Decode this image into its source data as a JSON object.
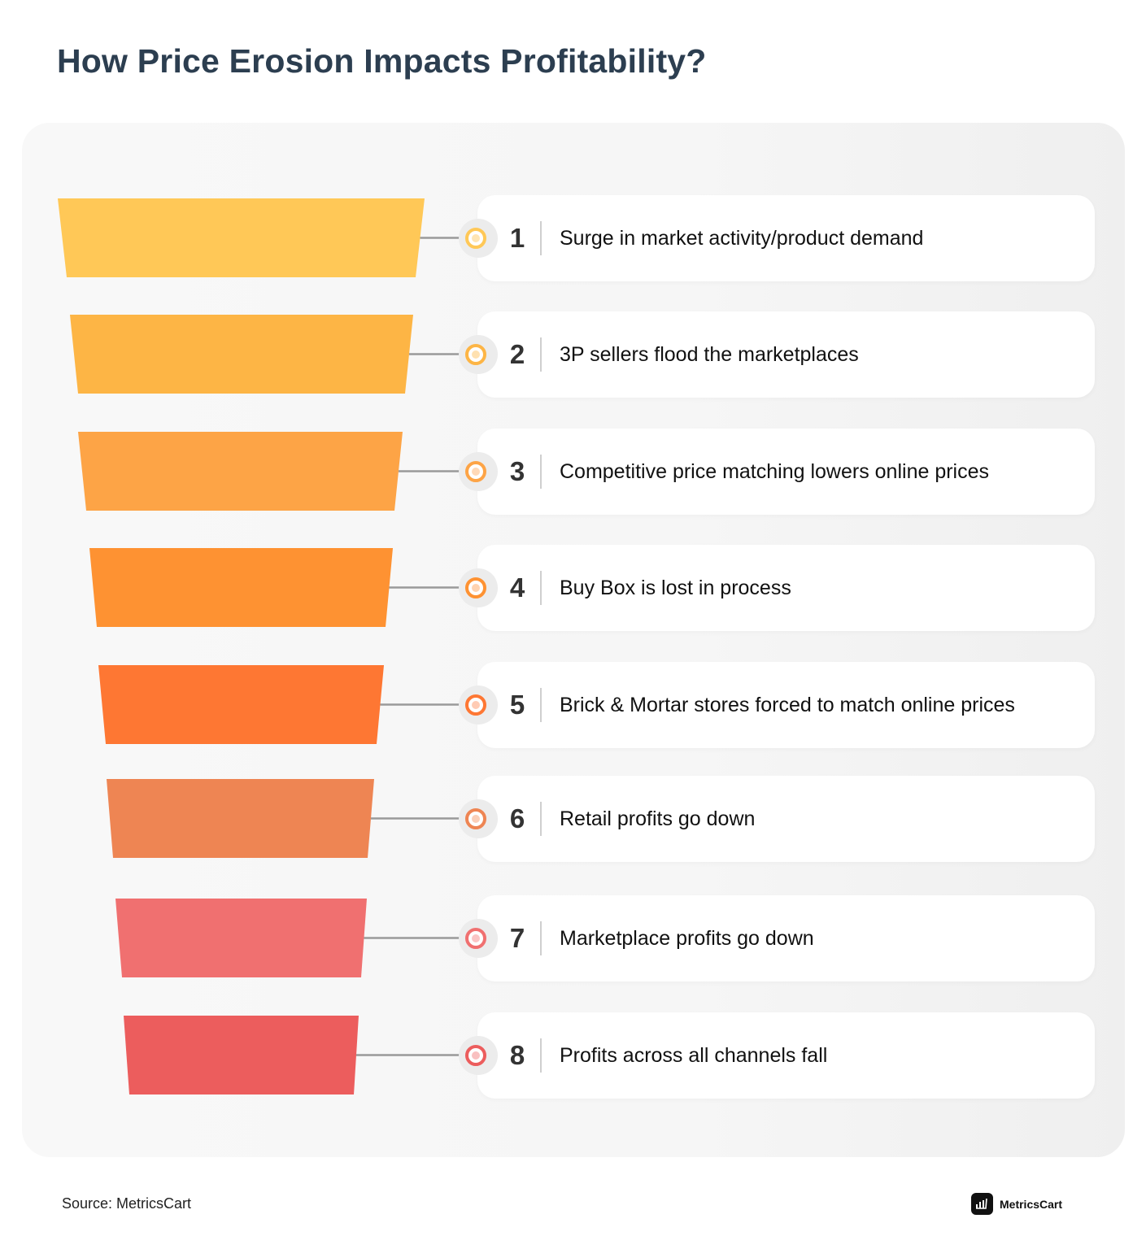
{
  "title": "How Price Erosion Impacts Profitability?",
  "steps": [
    {
      "number": "1",
      "label": "Surge in market activity/product demand",
      "color": "#FFC857",
      "inner": "#FFE5B3"
    },
    {
      "number": "2",
      "label": "3P sellers flood the marketplaces",
      "color": "#FDB545",
      "inner": "#FFE1B0"
    },
    {
      "number": "3",
      "label": "Competitive price matching lowers online prices",
      "color": "#FDA446",
      "inner": "#FFD9B8"
    },
    {
      "number": "4",
      "label": "Buy Box is lost in process",
      "color": "#FE9232",
      "inner": "#FFD3B0"
    },
    {
      "number": "5",
      "label": "Brick & Mortar stores forced to match online prices",
      "color": "#FE7733",
      "inner": "#FFCBB4"
    },
    {
      "number": "6",
      "label": "Retail profits go down",
      "color": "#EE8553",
      "inner": "#FBCFB8"
    },
    {
      "number": "7",
      "label": "Marketplace profits go down",
      "color": "#F07070",
      "inner": "#FBC5C5"
    },
    {
      "number": "8",
      "label": "Profits across all channels fall",
      "color": "#EC5D5D",
      "inner": "#F9C0C0"
    }
  ],
  "footer": {
    "source": "Source: MetricsCart",
    "brand": "MetricsCart"
  }
}
